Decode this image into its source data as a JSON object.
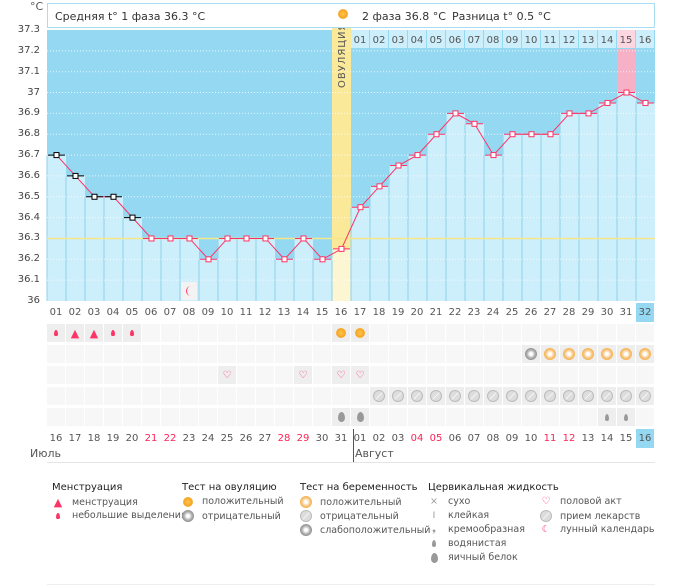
{
  "header": {
    "unit": "°C",
    "phase1": "Средняя t° 1 фаза 36.3 °C",
    "phase2": "2 фаза 36.8 °C",
    "diff": "Разница t° 0.5 °C",
    "ovulation_label": "ОВУЛЯЦИЯ"
  },
  "chart_data": {
    "type": "line",
    "ylim": [
      36,
      37.3
    ],
    "yticks": [
      "37.3",
      "37.2",
      "37.1",
      "37",
      "36.9",
      "36.8",
      "36.7",
      "36.6",
      "36.5",
      "36.4",
      "36.3",
      "36.2",
      "36.1",
      "36"
    ],
    "days": [
      "01",
      "02",
      "03",
      "04",
      "05",
      "06",
      "07",
      "08",
      "09",
      "10",
      "11",
      "12",
      "13",
      "14",
      "15",
      "16",
      "17",
      "18",
      "19",
      "20",
      "21",
      "22",
      "23",
      "24",
      "25",
      "26",
      "27",
      "28",
      "29",
      "30",
      "31",
      "32"
    ],
    "temperatures": [
      36.7,
      36.6,
      36.5,
      36.5,
      36.4,
      36.3,
      36.3,
      36.3,
      36.2,
      36.3,
      36.3,
      36.3,
      36.2,
      36.3,
      36.2,
      36.25,
      36.45,
      36.55,
      36.65,
      36.7,
      36.8,
      36.9,
      36.85,
      36.7,
      36.8,
      36.8,
      36.8,
      36.9,
      36.9,
      36.95,
      37.0,
      36.95
    ],
    "excluded_days": [
      1,
      2,
      3,
      4,
      5
    ],
    "coverline": 36.3,
    "ovulation_day": 16,
    "phase2_days": [
      "01",
      "02",
      "03",
      "04",
      "05",
      "06",
      "07",
      "08",
      "09",
      "10",
      "11",
      "12",
      "13",
      "14",
      "15",
      "16"
    ],
    "highlight_phase2_day": 15,
    "current_day": 32,
    "moon_day": 8,
    "colors": {
      "line": "#ff3366",
      "above": "#94d8f2",
      "below": "#cdeefb",
      "ovulation": "#fbe99a",
      "coverline": "#f5e88a",
      "highlight": "#f7b1c6"
    }
  },
  "rows": {
    "menstruation": {
      "1": "small",
      "2": "heavy",
      "3": "heavy",
      "4": "small",
      "5": "small",
      "16": "ovulation-positive",
      "17": "ovulation-positive"
    },
    "pregnancy": {
      "26": "weak",
      "27": "positive",
      "28": "positive",
      "29": "positive",
      "30": "positive",
      "31": "positive",
      "32": "positive"
    },
    "intercourse": [
      10,
      14,
      16,
      17
    ],
    "medication": [
      18,
      19,
      20,
      21,
      22,
      23,
      24,
      25,
      26,
      27,
      28,
      29,
      30,
      31,
      32
    ],
    "cervical": {
      "16": "egg-white",
      "17": "egg-white",
      "30": "watery",
      "31": "watery"
    }
  },
  "dates": [
    "16",
    "17",
    "18",
    "19",
    "20",
    "21",
    "22",
    "23",
    "24",
    "25",
    "26",
    "27",
    "28",
    "29",
    "30",
    "31",
    "01",
    "02",
    "03",
    "04",
    "05",
    "06",
    "07",
    "08",
    "09",
    "10",
    "11",
    "12",
    "13",
    "14",
    "15",
    "16"
  ],
  "weekend_dates": [
    5,
    6,
    12,
    13,
    19,
    20,
    26,
    27
  ],
  "months": {
    "july": "Июль",
    "august": "Август"
  },
  "legend": {
    "menstruation": {
      "title": "Менструация",
      "items": [
        "менструация",
        "небольшие выделения"
      ]
    },
    "ovulation_test": {
      "title": "Тест на овуляцию",
      "items": [
        "положительный",
        "отрицательный"
      ]
    },
    "pregnancy_test": {
      "title": "Тест на беременность",
      "items": [
        "положительный",
        "отрицательный",
        "слабоположительный"
      ]
    },
    "cervical": {
      "title": "Цервикальная жидкость",
      "items": [
        "сухо",
        "клейкая",
        "кремообразная",
        "водянистая",
        "яичный белок"
      ]
    },
    "other": {
      "items": [
        "половой акт",
        "прием лекарств",
        "лунный календарь"
      ]
    }
  }
}
